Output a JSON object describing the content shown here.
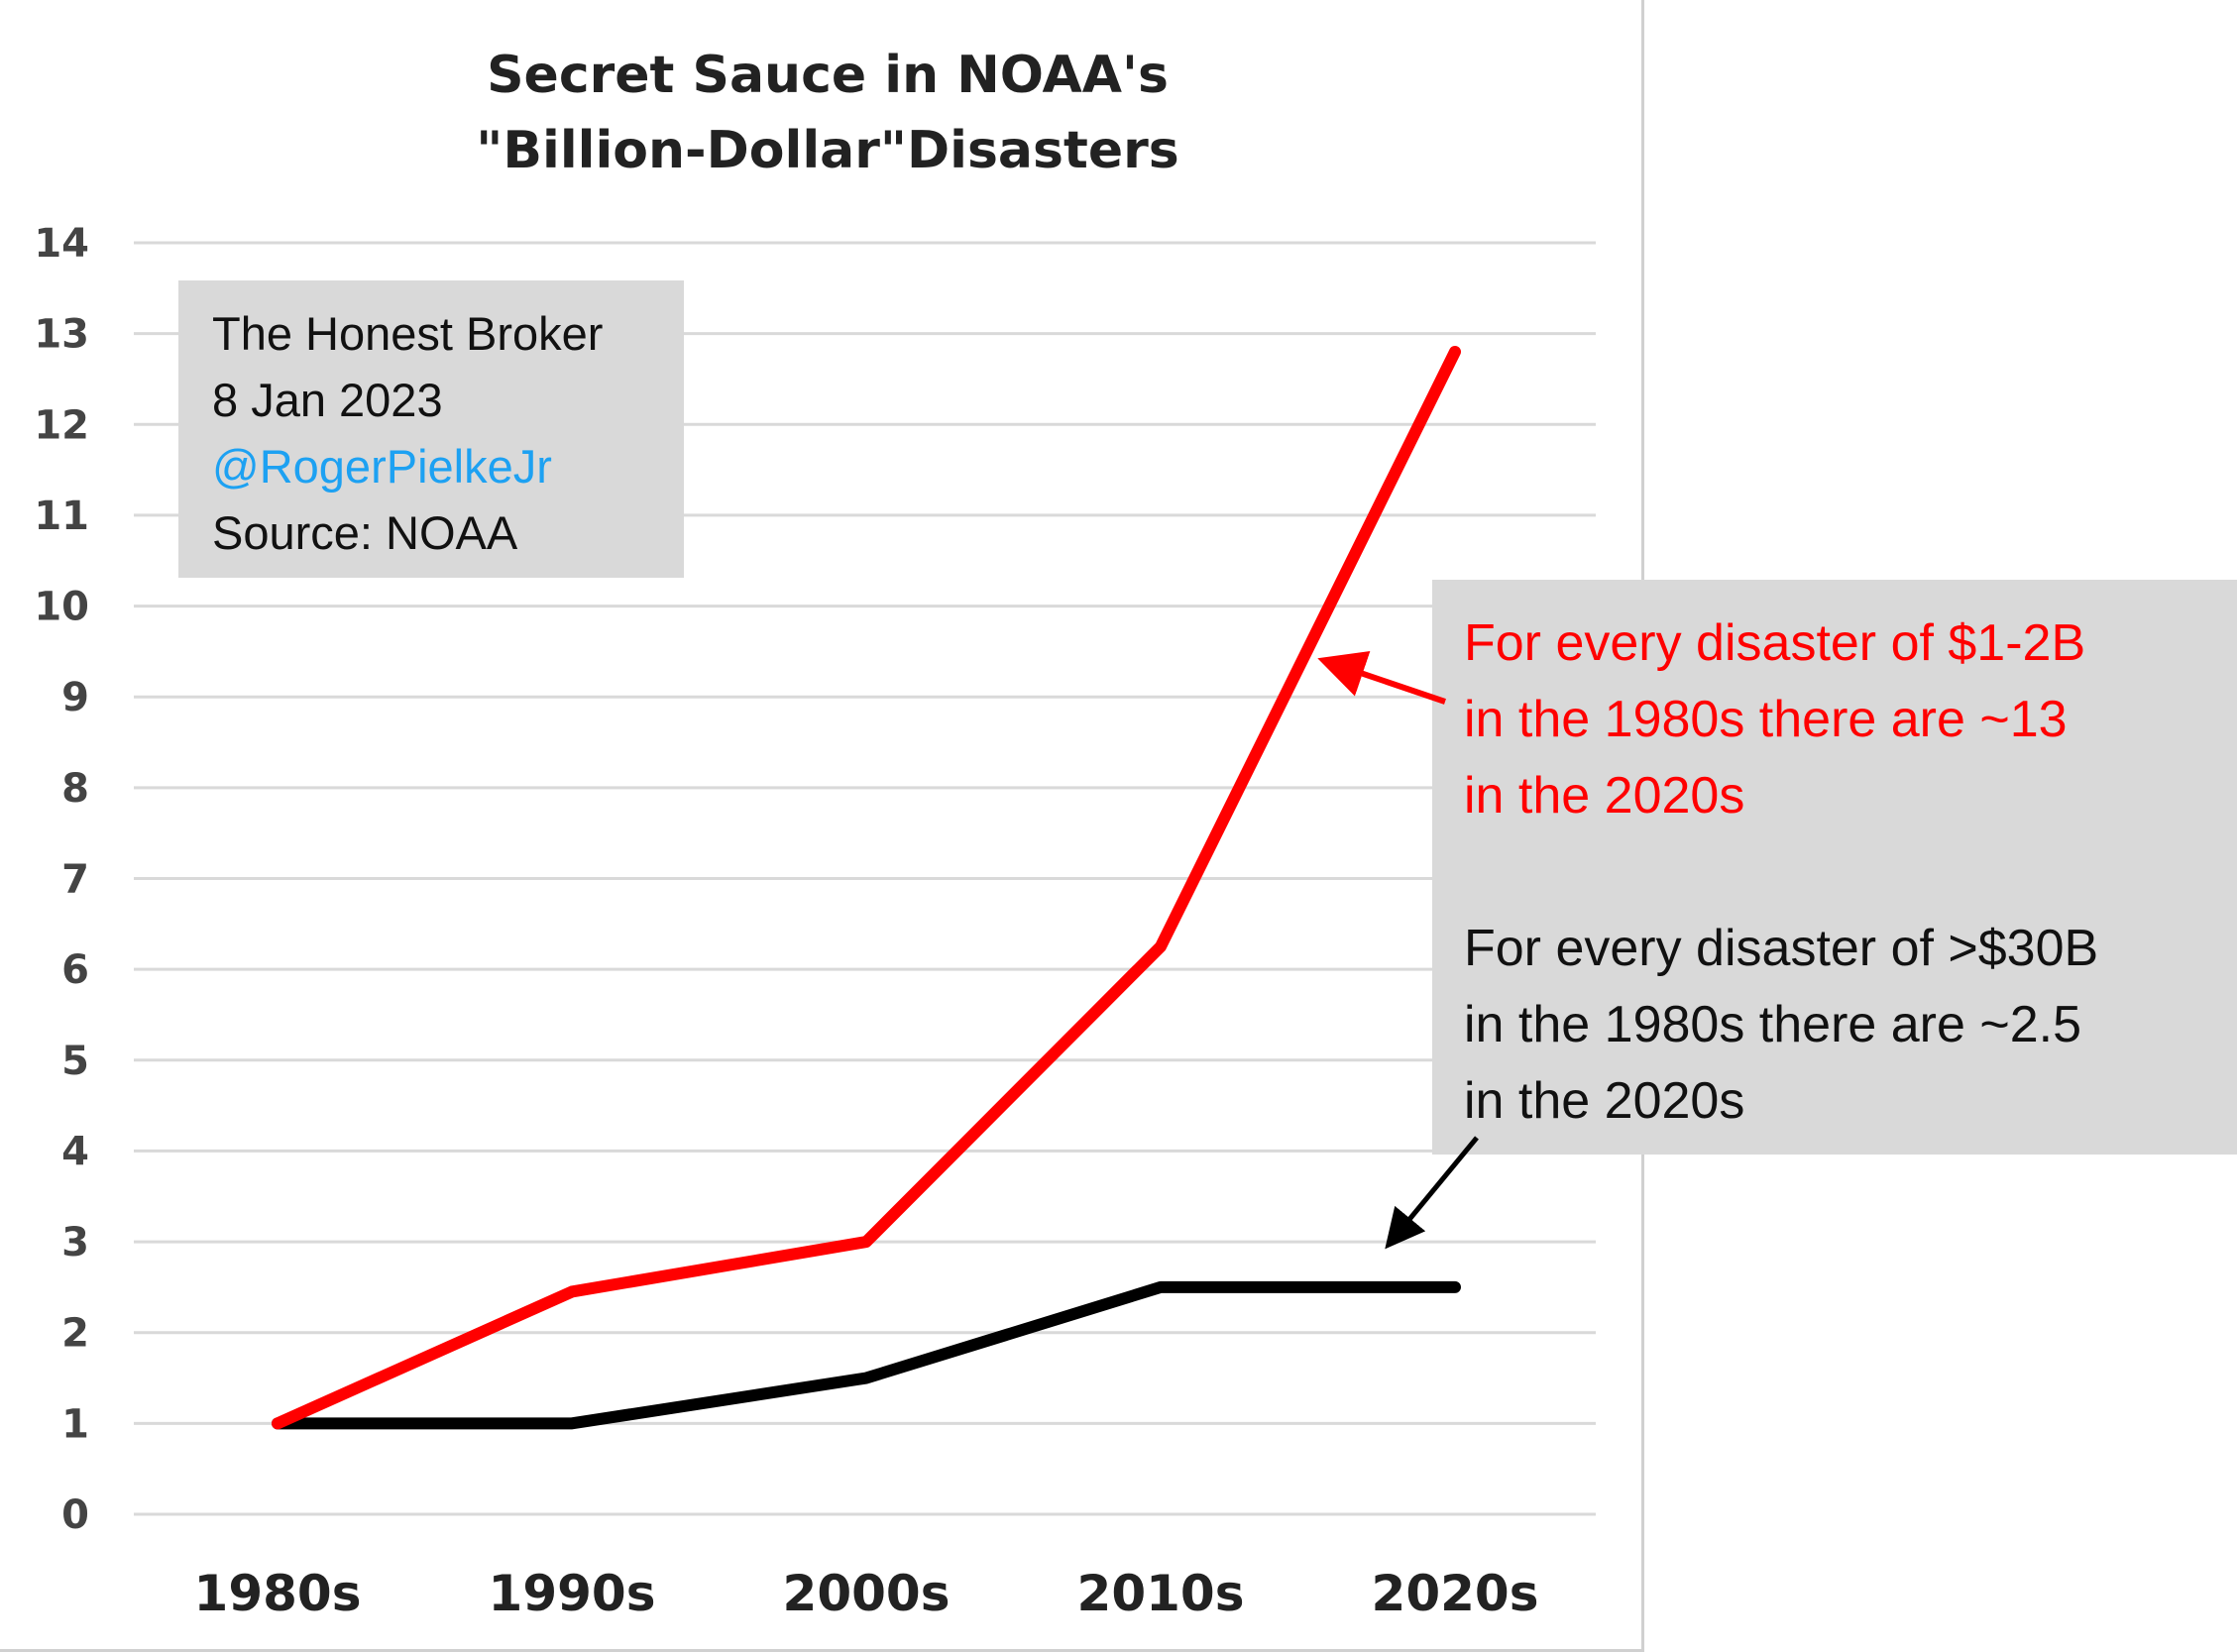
{
  "chart_data": {
    "type": "line",
    "title": [
      "Secret Sauce in NOAA's",
      "\"Billion-Dollar\"Disasters"
    ],
    "xlabel": "",
    "ylabel": "",
    "categories": [
      "1980s",
      "1990s",
      "2000s",
      "2010s",
      "2020s"
    ],
    "yticks": [
      "0",
      "1",
      "2",
      "3",
      "4",
      "5",
      "6",
      "7",
      "8",
      "9",
      "10",
      "11",
      "12",
      "13",
      "14"
    ],
    "ylim": [
      0,
      14
    ],
    "grid": true,
    "series": [
      {
        "key": "small",
        "color": "#ff0000",
        "values": [
          1,
          2.45,
          3.0,
          6.25,
          12.8
        ]
      },
      {
        "key": "large",
        "color": "#000000",
        "values": [
          1,
          1,
          1.5,
          2.5,
          2.5
        ]
      }
    ]
  },
  "credit": {
    "line1": "The Honest Broker",
    "line2": "8 Jan 2023",
    "handle": "@RogerPielkeJr",
    "source": "Source: NOAA"
  },
  "notes": {
    "red": [
      "For every disaster of $1-2B",
      "in the 1980s there are ~13",
      "in the 2020s"
    ],
    "black": [
      "For every disaster of >$30B",
      "in the 1980s there are ~2.5",
      "in the 2020s"
    ]
  },
  "colors": {
    "handle": "#1da1f2",
    "box": "#d9d9d9",
    "grid": "#d9d9d9"
  }
}
